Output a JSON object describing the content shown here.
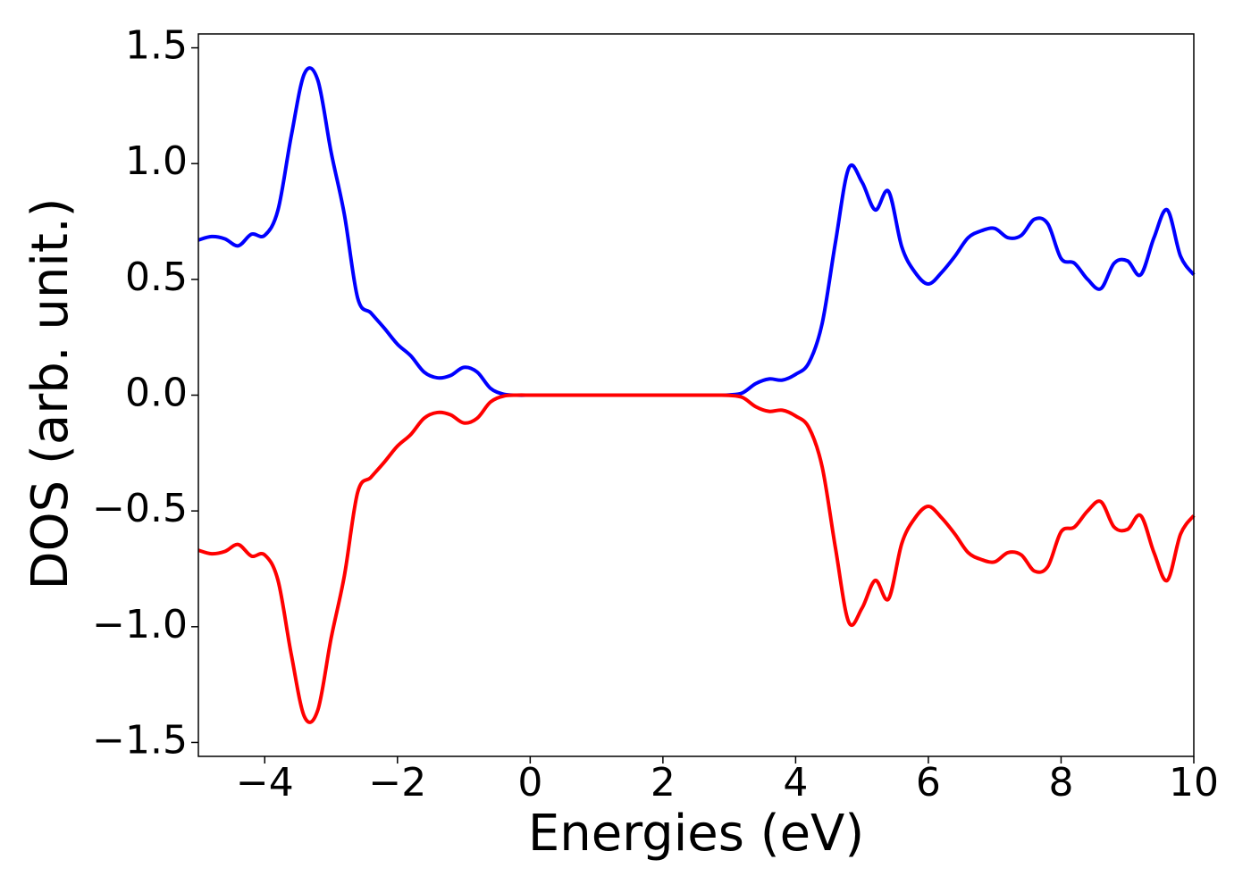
{
  "chart_data": {
    "type": "line",
    "x_label": "Energies (eV)",
    "y_label": "DOS (arb. unit.)",
    "x": [
      -5.0,
      -4.8,
      -4.6,
      -4.4,
      -4.2,
      -4.0,
      -3.8,
      -3.6,
      -3.4,
      -3.2,
      -3.0,
      -2.8,
      -2.6,
      -2.4,
      -2.2,
      -2.0,
      -1.8,
      -1.6,
      -1.4,
      -1.2,
      -1.0,
      -0.8,
      -0.6,
      -0.4,
      -0.2,
      0.0,
      0.2,
      0.4,
      0.6,
      0.8,
      1.0,
      1.2,
      1.4,
      1.6,
      1.8,
      2.0,
      2.2,
      2.4,
      2.6,
      2.8,
      3.0,
      3.2,
      3.4,
      3.6,
      3.8,
      4.0,
      4.2,
      4.4,
      4.6,
      4.8,
      5.0,
      5.2,
      5.4,
      5.6,
      5.8,
      6.0,
      6.2,
      6.4,
      6.6,
      6.8,
      7.0,
      7.2,
      7.4,
      7.6,
      7.8,
      8.0,
      8.2,
      8.4,
      8.6,
      8.8,
      9.0,
      9.2,
      9.4,
      9.6,
      9.8,
      10.0
    ],
    "series": [
      {
        "color": "#0000ff",
        "values": [
          0.67,
          0.685,
          0.675,
          0.645,
          0.695,
          0.69,
          0.8,
          1.12,
          1.39,
          1.36,
          1.05,
          0.78,
          0.42,
          0.355,
          0.29,
          0.22,
          0.17,
          0.1,
          0.075,
          0.085,
          0.12,
          0.1,
          0.03,
          0.004,
          0,
          0,
          0,
          0,
          0,
          0,
          0,
          0,
          0,
          0,
          0,
          0,
          0,
          0,
          0,
          0,
          0.001,
          0.01,
          0.05,
          0.07,
          0.065,
          0.09,
          0.14,
          0.31,
          0.66,
          0.98,
          0.92,
          0.8,
          0.88,
          0.64,
          0.53,
          0.48,
          0.53,
          0.6,
          0.68,
          0.71,
          0.72,
          0.68,
          0.69,
          0.76,
          0.74,
          0.59,
          0.57,
          0.5,
          0.46,
          0.57,
          0.58,
          0.52,
          0.68,
          0.8,
          0.6,
          0.52
        ]
      },
      {
        "color": "#ff0000",
        "values": [
          -0.67,
          -0.685,
          -0.675,
          -0.645,
          -0.695,
          -0.69,
          -0.8,
          -1.12,
          -1.39,
          -1.36,
          -1.05,
          -0.78,
          -0.42,
          -0.355,
          -0.29,
          -0.22,
          -0.17,
          -0.1,
          -0.075,
          -0.085,
          -0.12,
          -0.1,
          -0.03,
          -0.004,
          0,
          0,
          0,
          0,
          0,
          0,
          0,
          0,
          0,
          0,
          0,
          0,
          0,
          0,
          0,
          0,
          -0.001,
          -0.01,
          -0.05,
          -0.07,
          -0.065,
          -0.09,
          -0.14,
          -0.31,
          -0.66,
          -0.98,
          -0.92,
          -0.8,
          -0.88,
          -0.64,
          -0.53,
          -0.48,
          -0.53,
          -0.6,
          -0.68,
          -0.71,
          -0.72,
          -0.68,
          -0.69,
          -0.76,
          -0.74,
          -0.59,
          -0.57,
          -0.5,
          -0.46,
          -0.57,
          -0.58,
          -0.52,
          -0.68,
          -0.8,
          -0.6,
          -0.52
        ]
      }
    ],
    "xlim": [
      -5,
      10
    ],
    "xticks": [
      {
        "value": -4,
        "label": "−4"
      },
      {
        "value": -2,
        "label": "−2"
      },
      0,
      2,
      4,
      6,
      8,
      10
    ],
    "ylim": [
      -1.56,
      1.56
    ],
    "yticks": [
      {
        "value": -1.5,
        "label": "−1.5"
      },
      {
        "value": -1.0,
        "label": "−1.0"
      },
      {
        "value": -0.5,
        "label": "−0.5"
      },
      {
        "value": 0.0,
        "label": "0.0"
      },
      0.5,
      {
        "value": 1.0,
        "label": "1.0"
      },
      1.5
    ],
    "grid": false
  }
}
